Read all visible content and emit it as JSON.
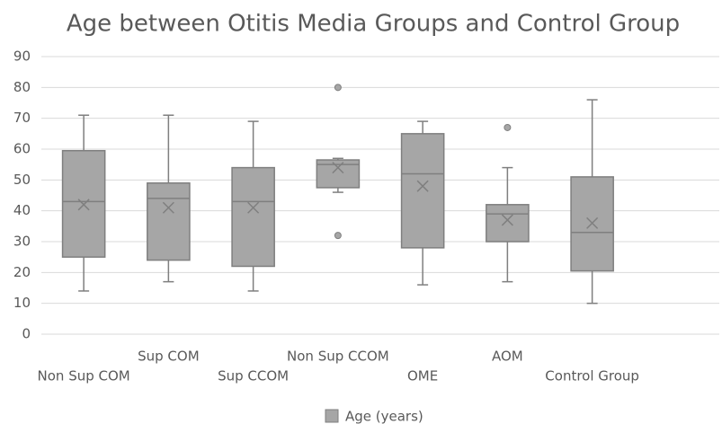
{
  "chart_data": {
    "type": "box",
    "title": "Age between Otitis Media Groups and Control Group",
    "categories": [
      "Non Sup COM",
      "Sup COM",
      "Sup CCOM",
      "Non Sup CCOM",
      "OME",
      "AOM",
      "Control Group",
      null
    ],
    "series": [
      {
        "name": "Age (years)",
        "color": "#a6a6a6",
        "stroke": "#7f7f7f",
        "boxes": [
          {
            "min": 14,
            "q1": 25,
            "median": 43,
            "q3": 59.5,
            "max": 71,
            "mean": 42,
            "outliers": []
          },
          {
            "min": 17,
            "q1": 24,
            "median": 44,
            "q3": 49,
            "max": 71,
            "mean": 41,
            "outliers": []
          },
          {
            "min": 14,
            "q1": 22,
            "median": 43,
            "q3": 54,
            "max": 69,
            "mean": 41,
            "outliers": []
          },
          {
            "min": 46,
            "q1": 47.5,
            "median": 55,
            "q3": 56.5,
            "max": 57,
            "mean": 54,
            "outliers": [
              80,
              32
            ]
          },
          {
            "min": 16,
            "q1": 28,
            "median": 52,
            "q3": 65,
            "max": 69,
            "mean": 48,
            "outliers": []
          },
          {
            "min": 17,
            "q1": 30,
            "median": 39,
            "q3": 42,
            "max": 54,
            "mean": 37,
            "outliers": [
              67
            ]
          },
          {
            "min": 10,
            "q1": 20.5,
            "median": 33,
            "q3": 51,
            "max": 76,
            "mean": 36,
            "outliers": []
          },
          null
        ]
      }
    ],
    "ylim": [
      0,
      90
    ],
    "yticks": [
      0,
      10,
      20,
      30,
      40,
      50,
      60,
      70,
      80,
      90
    ],
    "grid": true,
    "legend": "bottom"
  }
}
